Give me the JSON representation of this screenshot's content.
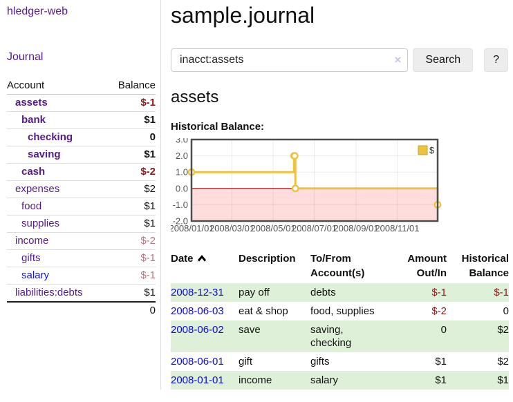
{
  "app": {
    "brand": "hledger-web"
  },
  "nav": {
    "journal": "Journal"
  },
  "sidebar": {
    "headers": {
      "account": "Account",
      "balance": "Balance"
    },
    "accounts": [
      {
        "name": "assets",
        "indent": 1,
        "balance": "$-1",
        "bold": true,
        "negative": "strong"
      },
      {
        "name": "bank",
        "indent": 2,
        "balance": "$1",
        "bold": true,
        "negative": "none"
      },
      {
        "name": "checking",
        "indent": 3,
        "balance": "0",
        "bold": true,
        "negative": "none"
      },
      {
        "name": "saving",
        "indent": 3,
        "balance": "$1",
        "bold": true,
        "negative": "none"
      },
      {
        "name": "cash",
        "indent": 2,
        "balance": "$-2",
        "bold": true,
        "negative": "strong"
      },
      {
        "name": "expenses",
        "indent": 1,
        "balance": "$2",
        "bold": false,
        "negative": "none"
      },
      {
        "name": "food",
        "indent": 2,
        "balance": "$1",
        "bold": false,
        "negative": "none"
      },
      {
        "name": "supplies",
        "indent": 2,
        "balance": "$1",
        "bold": false,
        "negative": "none"
      },
      {
        "name": "income",
        "indent": 1,
        "balance": "$-2",
        "bold": false,
        "negative": "muted"
      },
      {
        "name": "gifts",
        "indent": 2,
        "balance": "$-1",
        "bold": false,
        "negative": "muted"
      },
      {
        "name": "salary",
        "indent": 2,
        "balance": "$-1",
        "bold": false,
        "negative": "muted",
        "link_blue": true
      },
      {
        "name": "liabilities:debts",
        "indent": 1,
        "balance": "$1",
        "bold": false,
        "negative": "none"
      }
    ],
    "total": "0"
  },
  "header": {
    "title": "sample.journal"
  },
  "search": {
    "value": "inacct:assets",
    "clear_icon": "×",
    "button": "Search",
    "help_button": "?"
  },
  "section": {
    "account_heading": "assets",
    "chart_heading": "Historical Balance:"
  },
  "chart_data": {
    "type": "line",
    "steps": true,
    "title": "Historical Balance",
    "series": [
      {
        "name": "$",
        "color": "#edc240",
        "points": [
          [
            "2008-01-01",
            1
          ],
          [
            "2008-06-01",
            2
          ],
          [
            "2008-06-02",
            2
          ],
          [
            "2008-06-03",
            0
          ],
          [
            "2008-12-31",
            -1
          ]
        ]
      }
    ],
    "xlim": [
      "2008-01-01",
      "2008-12-31"
    ],
    "ylim": [
      -2,
      3
    ],
    "x_ticks": [
      "2008/01/01",
      "2008/03/01",
      "2008/05/01",
      "2008/07/01",
      "2008/09/01",
      "2008/11/01"
    ],
    "y_ticks": [
      3.0,
      2.0,
      1.0,
      0.0,
      -1.0,
      -2.0
    ],
    "legend": {
      "label": "$",
      "position": "top-right"
    },
    "grid": true,
    "negative_region_color": "#ffdddd",
    "zero_line_color": "#a40000",
    "tick_color": "#545454"
  },
  "register": {
    "headers": {
      "date": "Date",
      "description": "Description",
      "account": "To/From Account(s)",
      "amount": "Amount Out/In",
      "balance": "Historical Balance"
    },
    "rows": [
      {
        "date": "2008-12-31",
        "description": "pay off",
        "accounts": "debts",
        "amount": "$-1",
        "amount_neg": true,
        "balance": "$-1",
        "balance_neg": true
      },
      {
        "date": "2008-06-03",
        "description": "eat & shop",
        "accounts": "food, supplies",
        "amount": "$-2",
        "amount_neg": true,
        "balance": "0",
        "balance_neg": false
      },
      {
        "date": "2008-06-02",
        "description": "save",
        "accounts": "saving, checking",
        "amount": "0",
        "amount_neg": false,
        "balance": "$2",
        "balance_neg": false
      },
      {
        "date": "2008-06-01",
        "description": "gift",
        "accounts": "gifts",
        "amount": "$1",
        "amount_neg": false,
        "balance": "$2",
        "balance_neg": false
      },
      {
        "date": "2008-01-01",
        "description": "income",
        "accounts": "salary",
        "amount": "$1",
        "amount_neg": false,
        "balance": "$1",
        "balance_neg": false
      }
    ]
  }
}
